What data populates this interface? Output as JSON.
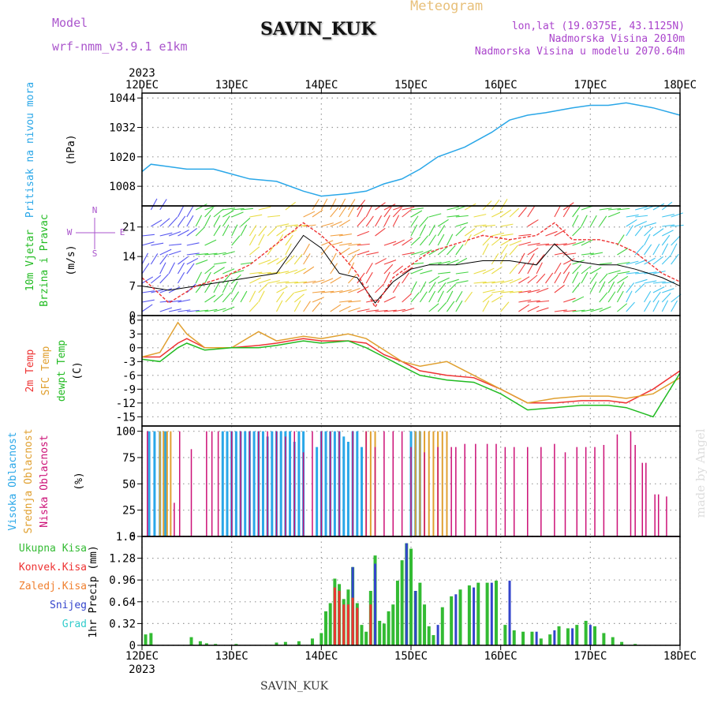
{
  "header": {
    "model_label": "Model",
    "model_name": "wrf-nmm_v3.9.1 e1km",
    "station": "SAVIN_KUK",
    "meteogram_label": "Meteogram",
    "lonlat": "lon,lat (19.0375E, 43.1125N)",
    "elevation": "Nadmorska Visina 2010m",
    "model_elevation": "Nadmorska Visina u modelu 2070.64m",
    "footer_station": "SAVIN_KUK",
    "credit": "made by Angel"
  },
  "colors": {
    "pressure": "#2aa7e8",
    "t2m": "#ee3333",
    "sfc": "#e0a030",
    "dew": "#22bb22",
    "high_cloud": "#2aa7e8",
    "mid_cloud": "#e0a030",
    "low_cloud": "#cc1177",
    "total_precip": "#33bb33",
    "conv_precip": "#ee3333",
    "frz_precip": "#f08030",
    "snow": "#3344cc",
    "hail": "#33cccc",
    "gust": "#ee3333",
    "wind": "#000000",
    "model": "#aa55cc",
    "meteogram": "#e8c07a",
    "info": "#aa44cc"
  },
  "chart_data": {
    "type": "line",
    "x_range": [
      "2023-12-12",
      "2023-12-18"
    ],
    "x_year": "2023",
    "x_ticks": [
      "12DEC",
      "13DEC",
      "14DEC",
      "15DEC",
      "16DEC",
      "17DEC",
      "18DEC"
    ],
    "panels": [
      {
        "id": "pressure",
        "type": "line",
        "ylabel_lines": [
          "Pritisak na nivou mora"
        ],
        "unit": "(hPa)",
        "yticks": [
          1008,
          1020,
          1032,
          1044
        ],
        "ylim": [
          1000,
          1046
        ],
        "series": [
          {
            "name": "Pritisak na nivou mora",
            "x": [
              0,
              0.1,
              0.3,
              0.5,
              0.8,
              1.0,
              1.2,
              1.5,
              1.8,
              2.0,
              2.3,
              2.5,
              2.7,
              2.9,
              3.1,
              3.3,
              3.6,
              3.9,
              4.1,
              4.3,
              4.5,
              4.8,
              5.0,
              5.2,
              5.4,
              5.7,
              6.0
            ],
            "values": [
              1014,
              1017,
              1016,
              1015,
              1015,
              1013,
              1011,
              1010,
              1006,
              1004,
              1005,
              1006,
              1009,
              1011,
              1015,
              1020,
              1024,
              1030,
              1035,
              1037,
              1038,
              1040,
              1041,
              1041,
              1042,
              1040,
              1037
            ]
          }
        ]
      },
      {
        "id": "wind",
        "type": "line",
        "ylabel_lines": [
          "10m Vjetar",
          "Brzina i Pravac"
        ],
        "unit": "(m/s)",
        "compass_labels": [
          "N",
          "W",
          "E",
          "S"
        ],
        "yticks": [
          0,
          7,
          14,
          21
        ],
        "ylim": [
          0,
          26
        ],
        "series": [
          {
            "name": "Brzina",
            "x": [
              0,
              0.3,
              0.6,
              0.9,
              1.2,
              1.5,
              1.8,
              2.0,
              2.2,
              2.4,
              2.6,
              2.8,
              3.0,
              3.2,
              3.5,
              3.8,
              4.1,
              4.4,
              4.6,
              4.8,
              5.1,
              5.3,
              5.5,
              5.8,
              6.0
            ],
            "values": [
              7,
              6,
              7,
              8,
              9,
              10,
              19,
              16,
              10,
              9,
              3,
              8,
              11,
              12,
              12,
              13,
              13,
              12,
              17,
              13,
              12,
              12,
              11,
              9,
              7
            ]
          },
          {
            "name": "Udar",
            "x": [
              0,
              0.3,
              0.6,
              0.9,
              1.2,
              1.5,
              1.8,
              2.0,
              2.2,
              2.4,
              2.6,
              2.8,
              3.0,
              3.2,
              3.5,
              3.8,
              4.1,
              4.4,
              4.6,
              4.8,
              5.1,
              5.3,
              5.5,
              5.8,
              6.0
            ],
            "values": [
              9,
              3,
              7,
              9,
              12,
              17,
              22,
              19,
              15,
              10,
              2,
              9,
              12,
              15,
              17,
              19,
              18,
              19,
              22,
              18,
              18,
              17,
              15,
              10,
              8
            ]
          }
        ],
        "band_hues": [
          "blue",
          "green",
          "yellow",
          "orange",
          "red",
          "green",
          "yellow",
          "red",
          "green",
          "cyan"
        ]
      },
      {
        "id": "temperature",
        "type": "line",
        "ylabel_lines": [
          "2m Temp",
          "SFC Temp",
          "dewpt Temp"
        ],
        "unit": "(C)",
        "yticks": [
          -15,
          -12,
          -9,
          -6,
          -3,
          0,
          3,
          6
        ],
        "ylim": [
          -17,
          7
        ],
        "series": [
          {
            "name": "2m Temp",
            "x": [
              0,
              0.2,
              0.4,
              0.5,
              0.7,
              1.0,
              1.3,
              1.5,
              1.8,
              2.0,
              2.3,
              2.5,
              2.7,
              2.9,
              3.1,
              3.4,
              3.7,
              4.0,
              4.3,
              4.6,
              4.9,
              5.2,
              5.4,
              5.7,
              6.0
            ],
            "values": [
              -2,
              -2,
              1,
              2,
              0,
              0,
              0.5,
              1,
              2,
              1.5,
              1.5,
              1,
              -1.5,
              -3,
              -5,
              -6,
              -6.5,
              -9,
              -12,
              -12,
              -11.5,
              -11.5,
              -12,
              -9,
              -5
            ]
          },
          {
            "name": "SFC Temp",
            "x": [
              0,
              0.2,
              0.4,
              0.5,
              0.7,
              1.0,
              1.3,
              1.5,
              1.8,
              2.0,
              2.3,
              2.5,
              2.7,
              2.9,
              3.1,
              3.4,
              3.7,
              4.0,
              4.3,
              4.6,
              4.9,
              5.2,
              5.4,
              5.7,
              6.0
            ],
            "values": [
              -2,
              -1,
              5.5,
              3,
              0,
              0,
              3.5,
              1.5,
              2.5,
              2,
              3,
              2,
              -0.5,
              -3,
              -4,
              -3,
              -6,
              -9,
              -12,
              -11,
              -10.5,
              -10.5,
              -11,
              -10,
              -6.5
            ]
          },
          {
            "name": "dewpt Temp",
            "x": [
              0,
              0.2,
              0.4,
              0.5,
              0.7,
              1.0,
              1.3,
              1.5,
              1.8,
              2.0,
              2.3,
              2.5,
              2.7,
              2.9,
              3.1,
              3.4,
              3.7,
              4.0,
              4.3,
              4.6,
              4.9,
              5.2,
              5.4,
              5.7,
              6.0
            ],
            "values": [
              -2.5,
              -3,
              0,
              1,
              -0.5,
              0,
              0,
              0.5,
              1.5,
              1,
              1.5,
              0,
              -2,
              -4,
              -6,
              -7,
              -7.5,
              -10,
              -13.5,
              -13,
              -12.5,
              -12.5,
              -13,
              -15,
              -5.5
            ]
          }
        ]
      },
      {
        "id": "cloud",
        "type": "bar",
        "ylabel_lines": [
          "Visoka Oblacnost",
          "Srednja Oblacnost",
          "Niska Oblacnost"
        ],
        "unit": "(%)",
        "yticks": [
          0,
          25,
          50,
          75,
          100
        ],
        "ylim": [
          0,
          105
        ],
        "series": [
          {
            "name": "Visoka Oblacnost",
            "x": [
              0.08,
              0.14,
              0.2,
              0.26,
              0.9,
              0.95,
              1.0,
              1.05,
              1.1,
              1.15,
              1.2,
              1.25,
              1.3,
              1.35,
              1.4,
              1.45,
              1.5,
              1.55,
              1.6,
              1.65,
              1.7,
              1.75,
              1.8,
              1.95,
              2.0,
              2.05,
              2.1,
              2.15,
              2.2,
              2.25,
              2.3,
              2.35,
              2.4,
              2.45,
              3.0,
              3.05,
              3.1
            ],
            "values": [
              100,
              100,
              100,
              100,
              100,
              100,
              100,
              100,
              100,
              100,
              100,
              100,
              100,
              100,
              95,
              100,
              100,
              100,
              100,
              100,
              90,
              100,
              100,
              85,
              100,
              100,
              100,
              100,
              100,
              95,
              90,
              100,
              100,
              85,
              100,
              100,
              100
            ]
          },
          {
            "name": "Srednja Oblacnost",
            "x": [
              0.2,
              0.24,
              0.28,
              0.32,
              2.5,
              2.55,
              2.6,
              3.05,
              3.1,
              3.15,
              3.2,
              3.25,
              3.3,
              3.35,
              3.4
            ],
            "values": [
              100,
              100,
              100,
              100,
              100,
              100,
              100,
              100,
              100,
              100,
              100,
              100,
              100,
              100,
              100
            ]
          },
          {
            "name": "Niska Oblacnost",
            "x": [
              0.06,
              0.36,
              0.42,
              0.55,
              0.72,
              0.78,
              0.85,
              1.0,
              1.1,
              1.2,
              1.3,
              1.4,
              1.5,
              1.6,
              1.7,
              1.8,
              1.9,
              2.0,
              2.1,
              2.2,
              2.35,
              2.5,
              2.6,
              2.7,
              2.8,
              2.9,
              3.0,
              3.15,
              3.3,
              3.45,
              3.5,
              3.6,
              3.72,
              3.85,
              3.95,
              4.05,
              4.15,
              4.3,
              4.45,
              4.6,
              4.72,
              4.85,
              4.95,
              5.05,
              5.15,
              5.3,
              5.45,
              5.5,
              5.58,
              5.62,
              5.72,
              5.76,
              5.85
            ],
            "values": [
              100,
              32,
              100,
              83,
              100,
              100,
              100,
              100,
              100,
              100,
              100,
              100,
              100,
              95,
              100,
              80,
              100,
              100,
              100,
              100,
              100,
              100,
              85,
              100,
              100,
              100,
              85,
              80,
              85,
              85,
              85,
              88,
              88,
              88,
              88,
              85,
              85,
              85,
              85,
              88,
              80,
              85,
              85,
              85,
              87,
              97,
              100,
              87,
              70,
              70,
              40,
              40,
              38
            ]
          }
        ]
      },
      {
        "id": "precip",
        "type": "bar",
        "ylabel_lines": [
          "Ukupna Kisa",
          "Konvek.Kisa",
          "Zaledj.Kisa",
          "Snijeg",
          "Grad"
        ],
        "unit": "1hr Precip (mm)",
        "yticks": [
          0,
          0.32,
          0.64,
          0.96,
          1.28,
          1.6
        ],
        "ylim": [
          0,
          1.6
        ],
        "series": [
          {
            "name": "Ukupna Kisa",
            "x": [
              0.04,
              0.1,
              0.55,
              0.65,
              0.72,
              0.82,
              1.05,
              1.5,
              1.6,
              1.75,
              1.9,
              2.0,
              2.05,
              2.1,
              2.15,
              2.2,
              2.25,
              2.3,
              2.35,
              2.4,
              2.45,
              2.5,
              2.55,
              2.6,
              2.65,
              2.7,
              2.75,
              2.8,
              2.85,
              2.9,
              2.95,
              3.0,
              3.05,
              3.1,
              3.15,
              3.2,
              3.25,
              3.35,
              3.45,
              3.55,
              3.65,
              3.75,
              3.85,
              3.95,
              4.05,
              4.15,
              4.25,
              4.35,
              4.45,
              4.55,
              4.65,
              4.75,
              4.85,
              4.95,
              5.05,
              5.15,
              5.25,
              5.35,
              5.5
            ],
            "values": [
              0.16,
              0.18,
              0.12,
              0.06,
              0.03,
              0.02,
              0.02,
              0.04,
              0.05,
              0.06,
              0.1,
              0.18,
              0.5,
              0.62,
              0.98,
              0.9,
              0.68,
              0.82,
              1.15,
              0.62,
              0.3,
              0.2,
              0.8,
              1.32,
              0.36,
              0.32,
              0.5,
              0.6,
              0.95,
              1.25,
              1.5,
              1.42,
              0.8,
              0.92,
              0.6,
              0.28,
              0.15,
              0.56,
              0.72,
              0.82,
              0.88,
              0.92,
              0.92,
              0.95,
              0.3,
              0.22,
              0.2,
              0.2,
              0.1,
              0.16,
              0.28,
              0.25,
              0.3,
              0.36,
              0.28,
              0.18,
              0.12,
              0.05,
              0.02
            ]
          },
          {
            "name": "Snijeg",
            "x": [
              2.35,
              2.6,
              2.95,
              3.05,
              3.3,
              3.5,
              3.7,
              3.9,
              4.1,
              4.4,
              4.6,
              4.8,
              5.0
            ],
            "values": [
              1.15,
              1.2,
              1.5,
              0.8,
              0.3,
              0.75,
              0.85,
              0.92,
              0.95,
              0.2,
              0.22,
              0.25,
              0.3
            ]
          },
          {
            "name": "Konvek.Kisa",
            "x": [
              2.15,
              2.2,
              2.25,
              2.3,
              2.35,
              2.4,
              2.55
            ],
            "values": [
              0.85,
              0.8,
              0.6,
              0.6,
              0.7,
              0.55,
              0.6
            ]
          },
          {
            "name": "Zaledj.Kisa",
            "x": [],
            "values": []
          },
          {
            "name": "Grad",
            "x": [],
            "values": []
          }
        ]
      }
    ]
  }
}
